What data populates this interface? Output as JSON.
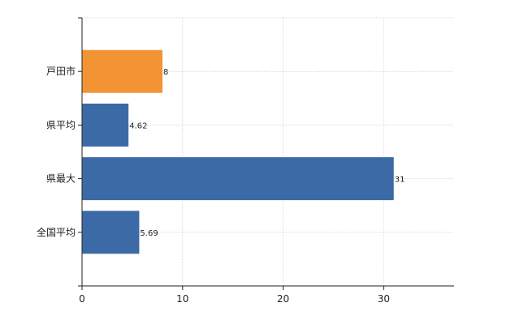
{
  "chart_data": {
    "type": "bar",
    "orientation": "horizontal",
    "categories": [
      "戸田市",
      "県平均",
      "県最大",
      "全国平均"
    ],
    "values": [
      8,
      4.62,
      31,
      5.69
    ],
    "data_labels": [
      "8",
      "4.62",
      "31",
      "5.69"
    ],
    "highlight_index": 0,
    "xlim": [
      0,
      37
    ],
    "x_ticks": [
      0,
      10,
      20,
      30
    ],
    "x_tick_labels": [
      "0",
      "10",
      "20",
      "30"
    ],
    "grid": true,
    "title": "",
    "xlabel": "",
    "ylabel": "",
    "colors": {
      "default_bar": "#3b6aa7",
      "highlight_bar": "#f29434",
      "grid": "#d8d8d8",
      "axis": "#222222"
    }
  }
}
